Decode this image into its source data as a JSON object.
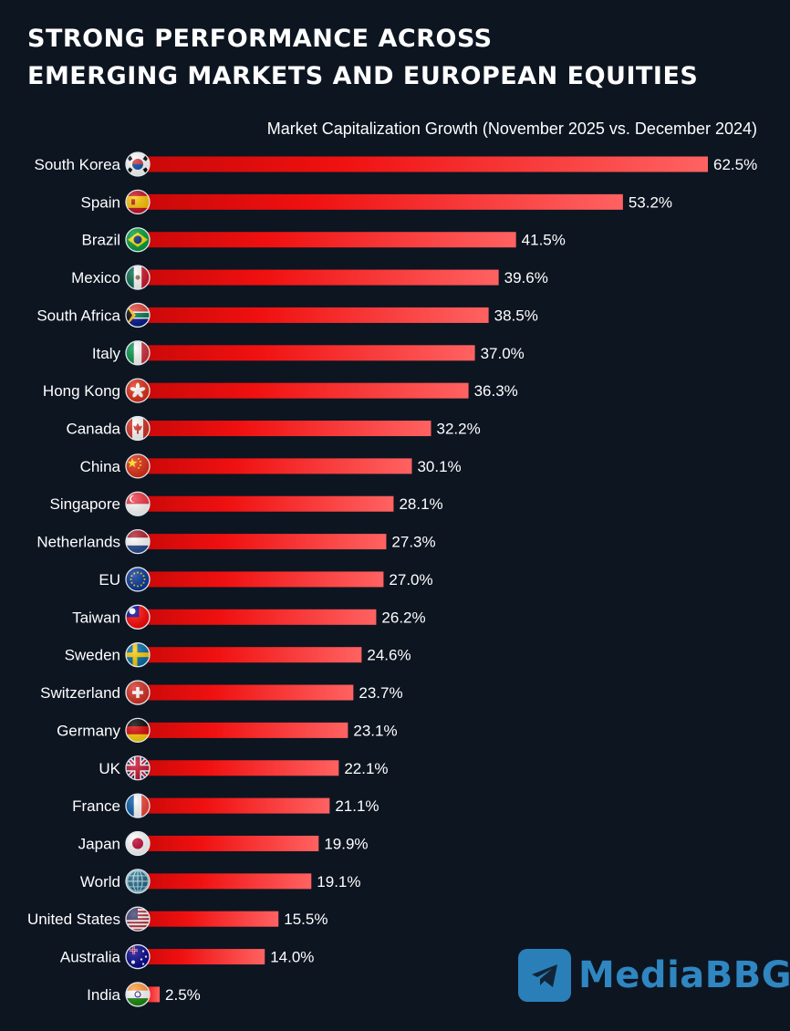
{
  "title": {
    "line1": "STRONG PERFORMANCE ACROSS",
    "line2": "EMERGING MARKETS AND EUROPEAN EQUITIES"
  },
  "watermark": "MediaBBG",
  "colors": {
    "background": "#0d1521",
    "bar_start": "#d80a0a",
    "bar_end": "#ff5f5f",
    "text": "#ffffff",
    "watermark": "#2f86c0"
  },
  "chart_data": {
    "type": "bar",
    "orientation": "horizontal",
    "title": "STRONG PERFORMANCE ACROSS EMERGING MARKETS AND EUROPEAN EQUITIES",
    "subtitle": "Market Capitalization Growth (November 2025 vs. December 2024)",
    "unit": "%",
    "categories": [
      "South Korea",
      "Spain",
      "Brazil",
      "Mexico",
      "South Africa",
      "Italy",
      "Hong Kong",
      "Canada",
      "China",
      "Singapore",
      "Netherlands",
      "EU",
      "Taiwan",
      "Sweden",
      "Switzerland",
      "Germany",
      "UK",
      "France",
      "Japan",
      "World",
      "United States",
      "Australia",
      "India"
    ],
    "values": [
      62.5,
      53.2,
      41.5,
      39.6,
      38.5,
      37.0,
      36.3,
      32.2,
      30.1,
      28.1,
      27.3,
      27.0,
      26.2,
      24.6,
      23.7,
      23.1,
      22.1,
      21.1,
      19.9,
      19.1,
      15.5,
      14.0,
      2.5
    ],
    "labels": [
      "62.5%",
      "53.2%",
      "41.5%",
      "39.6%",
      "38.5%",
      "37.0%",
      "36.3%",
      "32.2%",
      "30.1%",
      "28.1%",
      "27.3%",
      "27.0%",
      "26.2%",
      "24.6%",
      "23.7%",
      "23.1%",
      "22.1%",
      "21.1%",
      "19.9%",
      "19.1%",
      "15.5%",
      "14.0%",
      "2.5%"
    ],
    "flags": [
      "south-korea-flag-icon",
      "spain-flag-icon",
      "brazil-flag-icon",
      "mexico-flag-icon",
      "south-africa-flag-icon",
      "italy-flag-icon",
      "hong-kong-flag-icon",
      "canada-flag-icon",
      "china-flag-icon",
      "singapore-flag-icon",
      "netherlands-flag-icon",
      "eu-flag-icon",
      "taiwan-flag-icon",
      "sweden-flag-icon",
      "switzerland-flag-icon",
      "germany-flag-icon",
      "uk-flag-icon",
      "france-flag-icon",
      "japan-flag-icon",
      "globe-icon",
      "us-flag-icon",
      "australia-flag-icon",
      "india-flag-icon"
    ],
    "xlim": [
      0,
      62.5
    ],
    "grid": false,
    "legend": "none",
    "data_labels": "outside-end"
  }
}
